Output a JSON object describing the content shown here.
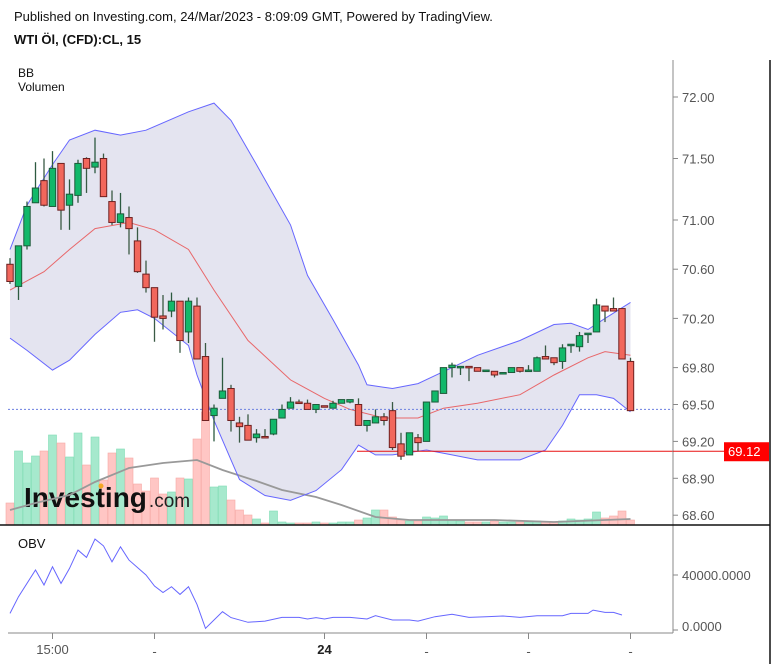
{
  "header": {
    "published": "Published on Investing.com, 24/Mar/2023 - 8:09:09 GMT, Powered by TradingView.",
    "symbol": "WTI Öl, (CFD):CL, 15"
  },
  "indicators": {
    "bb_label": "BB",
    "volume_label": "Volumen",
    "obv_label": "OBV"
  },
  "logo": {
    "text": "Investing",
    "suffix": ".com"
  },
  "colors": {
    "up": "#12b86a",
    "down": "#f2675c",
    "up_border": "#1d5a3a",
    "down_border": "#6e2020",
    "vol_up": "#a6e9cd",
    "vol_down": "#ffc6c4",
    "bb_fill": "#e4e4f0",
    "bb_band": "#6666ff",
    "bb_mid": "#e8676a",
    "vol_ma": "#999999",
    "obv": "#6666ff",
    "price_line": "#e81010",
    "last_line": "#6b7fe0"
  },
  "chart_data": [
    {
      "type": "candlestick",
      "title": "",
      "yaxis": {
        "ticks": [
          72.0,
          71.5,
          71.0,
          70.6,
          70.2,
          69.8,
          69.5,
          69.2,
          68.9,
          68.6
        ],
        "tick_labels": [
          "72.00",
          "71.50",
          "71.00",
          "70.60",
          "70.20",
          "69.80",
          "69.50",
          "69.20",
          "68.90",
          "68.60"
        ],
        "ylim": [
          68.55,
          72.3
        ]
      },
      "xaxis": {
        "ticks": [
          6,
          18,
          38,
          50,
          62,
          74
        ],
        "tick_labels": [
          "15:00",
          "-",
          "24",
          "-",
          "-",
          "-"
        ],
        "bold": [
          false,
          false,
          true,
          false,
          false,
          false
        ]
      },
      "price_marker": {
        "value": 69.12,
        "label": "69.12"
      },
      "last_price_line": 69.46,
      "ohlc": [
        [
          70.64,
          70.69,
          70.48,
          70.5
        ],
        [
          70.46,
          70.79,
          70.35,
          70.79
        ],
        [
          70.79,
          71.15,
          70.76,
          71.11
        ],
        [
          71.14,
          71.47,
          71.14,
          71.26
        ],
        [
          71.32,
          71.5,
          71.11,
          71.12
        ],
        [
          71.11,
          71.56,
          71.11,
          71.42
        ],
        [
          71.46,
          71.46,
          70.92,
          71.08
        ],
        [
          71.12,
          71.33,
          70.92,
          71.21
        ],
        [
          71.2,
          71.49,
          71.14,
          71.46
        ],
        [
          71.5,
          71.51,
          71.22,
          71.42
        ],
        [
          71.43,
          71.67,
          71.38,
          71.47
        ],
        [
          71.5,
          71.54,
          71.19,
          71.19
        ],
        [
          71.15,
          71.24,
          70.96,
          70.98
        ],
        [
          70.98,
          71.22,
          70.94,
          71.05
        ],
        [
          71.02,
          71.11,
          70.72,
          70.93
        ],
        [
          70.83,
          70.94,
          70.57,
          70.58
        ],
        [
          70.56,
          70.67,
          70.41,
          70.45
        ],
        [
          70.45,
          70.45,
          70.01,
          70.21
        ],
        [
          70.22,
          70.39,
          70.11,
          70.2
        ],
        [
          70.26,
          70.41,
          70.21,
          70.34
        ],
        [
          70.34,
          70.34,
          69.92,
          70.02
        ],
        [
          70.09,
          70.37,
          70.0,
          70.34
        ],
        [
          70.3,
          70.37,
          69.87,
          69.87
        ],
        [
          69.89,
          70.0,
          69.37,
          69.37
        ],
        [
          69.41,
          69.5,
          69.2,
          69.47
        ],
        [
          69.55,
          69.88,
          69.55,
          69.61
        ],
        [
          69.63,
          69.66,
          69.28,
          69.37
        ],
        [
          69.35,
          69.4,
          69.19,
          69.32
        ],
        [
          69.33,
          69.42,
          69.21,
          69.21
        ],
        [
          69.23,
          69.3,
          69.19,
          69.26
        ],
        [
          69.24,
          69.3,
          69.23,
          69.23
        ],
        [
          69.26,
          69.38,
          69.25,
          69.38
        ],
        [
          69.39,
          69.5,
          69.39,
          69.46
        ],
        [
          69.47,
          69.56,
          69.47,
          69.52
        ],
        [
          69.52,
          69.54,
          69.51,
          69.51
        ],
        [
          69.51,
          69.54,
          69.46,
          69.46
        ],
        [
          69.46,
          69.5,
          69.43,
          69.5
        ],
        [
          69.49,
          69.49,
          69.48,
          69.48
        ],
        [
          69.47,
          69.53,
          69.47,
          69.51
        ],
        [
          69.51,
          69.54,
          69.51,
          69.54
        ],
        [
          69.52,
          69.54,
          69.51,
          69.54
        ],
        [
          69.5,
          69.55,
          69.33,
          69.33
        ],
        [
          69.33,
          69.37,
          69.28,
          69.37
        ],
        [
          69.35,
          69.46,
          69.35,
          69.4
        ],
        [
          69.4,
          69.43,
          69.33,
          69.37
        ],
        [
          69.45,
          69.52,
          69.13,
          69.15
        ],
        [
          69.18,
          69.27,
          69.05,
          69.08
        ],
        [
          69.09,
          69.27,
          69.09,
          69.27
        ],
        [
          69.23,
          69.26,
          69.12,
          69.19
        ],
        [
          69.2,
          69.52,
          69.2,
          69.52
        ],
        [
          69.52,
          69.61,
          69.52,
          69.61
        ],
        [
          69.59,
          69.8,
          69.59,
          69.8
        ],
        [
          69.8,
          69.84,
          69.72,
          69.82
        ],
        [
          69.8,
          69.81,
          69.74,
          69.81
        ],
        [
          69.81,
          69.81,
          69.69,
          69.8
        ],
        [
          69.8,
          69.8,
          69.77,
          69.77
        ],
        [
          69.77,
          69.78,
          69.77,
          69.78
        ],
        [
          69.77,
          69.77,
          69.72,
          69.74
        ],
        [
          69.75,
          69.76,
          69.75,
          69.76
        ],
        [
          69.76,
          69.8,
          69.76,
          69.8
        ],
        [
          69.8,
          69.8,
          69.76,
          69.77
        ],
        [
          69.77,
          69.82,
          69.77,
          69.78
        ],
        [
          69.77,
          69.89,
          69.77,
          69.88
        ],
        [
          69.89,
          69.98,
          69.87,
          69.87
        ],
        [
          69.88,
          69.88,
          69.82,
          69.84
        ],
        [
          69.85,
          69.99,
          69.79,
          69.96
        ],
        [
          69.98,
          69.99,
          69.92,
          69.99
        ],
        [
          69.97,
          70.09,
          69.93,
          70.06
        ],
        [
          70.07,
          70.08,
          70.0,
          70.08
        ],
        [
          70.09,
          70.36,
          70.09,
          70.31
        ],
        [
          70.3,
          70.3,
          70.17,
          70.26
        ],
        [
          70.28,
          70.37,
          70.26,
          70.26
        ],
        [
          70.28,
          70.28,
          69.87,
          69.87
        ],
        [
          69.85,
          69.88,
          69.45,
          69.45
        ]
      ],
      "bollinger": {
        "upper": [
          [
            1,
            70.76
          ],
          [
            3,
            71.12
          ],
          [
            6,
            71.45
          ],
          [
            8,
            71.65
          ],
          [
            11,
            71.73
          ],
          [
            14,
            71.69
          ],
          [
            17,
            71.73
          ],
          [
            22,
            71.88
          ],
          [
            25,
            71.95
          ],
          [
            27,
            71.81
          ],
          [
            30,
            71.45
          ],
          [
            34,
            70.96
          ],
          [
            36,
            70.55
          ],
          [
            39,
            70.19
          ],
          [
            42,
            69.82
          ],
          [
            43,
            69.66
          ],
          [
            46,
            69.63
          ],
          [
            49,
            69.67
          ],
          [
            53,
            69.8
          ],
          [
            56,
            69.9
          ],
          [
            61,
            70.02
          ],
          [
            65,
            70.15
          ],
          [
            67,
            70.16
          ],
          [
            69,
            70.11
          ],
          [
            71,
            70.2
          ],
          [
            74,
            70.33
          ]
        ],
        "middle": [
          [
            1,
            70.43
          ],
          [
            5,
            70.58
          ],
          [
            8,
            70.76
          ],
          [
            11,
            70.93
          ],
          [
            15,
            70.98
          ],
          [
            18,
            70.92
          ],
          [
            22,
            70.76
          ],
          [
            25,
            70.43
          ],
          [
            29,
            70.02
          ],
          [
            34,
            69.7
          ],
          [
            38,
            69.55
          ],
          [
            41,
            69.46
          ],
          [
            45,
            69.39
          ],
          [
            49,
            69.39
          ],
          [
            52,
            69.47
          ],
          [
            56,
            69.51
          ],
          [
            61,
            69.58
          ],
          [
            65,
            69.74
          ],
          [
            69,
            69.88
          ],
          [
            71,
            69.93
          ],
          [
            74,
            69.9
          ]
        ],
        "lower": [
          [
            1,
            70.04
          ],
          [
            3,
            69.94
          ],
          [
            6,
            69.78
          ],
          [
            8,
            69.86
          ],
          [
            11,
            70.07
          ],
          [
            14,
            70.25
          ],
          [
            16,
            70.27
          ],
          [
            18,
            70.2
          ],
          [
            22,
            69.98
          ],
          [
            23,
            69.74
          ],
          [
            25,
            69.37
          ],
          [
            27,
            69.05
          ],
          [
            28,
            68.89
          ],
          [
            31,
            68.76
          ],
          [
            34,
            68.72
          ],
          [
            37,
            68.8
          ],
          [
            40,
            68.97
          ],
          [
            42,
            69.17
          ],
          [
            44,
            69.09
          ],
          [
            46,
            69.09
          ],
          [
            50,
            69.13
          ],
          [
            53,
            69.09
          ],
          [
            56,
            69.05
          ],
          [
            61,
            69.05
          ],
          [
            64,
            69.13
          ],
          [
            66,
            69.33
          ],
          [
            68,
            69.58
          ],
          [
            70,
            69.58
          ],
          [
            72,
            69.55
          ],
          [
            74,
            69.44
          ]
        ]
      },
      "volume": [
        22,
        74,
        62,
        69,
        74,
        90,
        82,
        68,
        92,
        60,
        88,
        45,
        72,
        76,
        67,
        41,
        34,
        47,
        31,
        33,
        47,
        46,
        86,
        113,
        38,
        39,
        25,
        15,
        10,
        6,
        2,
        14,
        3,
        2,
        2,
        2,
        3,
        2,
        2,
        3,
        3,
        5,
        7,
        15,
        15,
        8,
        5,
        4,
        4,
        8,
        7,
        9,
        5,
        4,
        3,
        3,
        3,
        4,
        3,
        3,
        3,
        3,
        4,
        3,
        3,
        4,
        6,
        5,
        6,
        13,
        7,
        9,
        14,
        5
      ],
      "volume_ma": [
        [
          1,
          15
        ],
        [
          4,
          22
        ],
        [
          8,
          30
        ],
        [
          11,
          43
        ],
        [
          15,
          57
        ],
        [
          19,
          62
        ],
        [
          23,
          65
        ],
        [
          26,
          55
        ],
        [
          30,
          44
        ],
        [
          33,
          35
        ],
        [
          37,
          28
        ],
        [
          40,
          20
        ],
        [
          44,
          8
        ],
        [
          48,
          5
        ],
        [
          58,
          5
        ],
        [
          65,
          3
        ],
        [
          74,
          6
        ]
      ]
    },
    {
      "type": "line",
      "title": "",
      "series_label": "OBV",
      "yaxis": {
        "ticks": [
          40000,
          0
        ],
        "tick_labels": [
          "40000.0000",
          "0.0000"
        ]
      },
      "values": [
        [
          1,
          12100
        ],
        [
          2,
          24200
        ],
        [
          4,
          43600
        ],
        [
          5,
          32700
        ],
        [
          6,
          46000
        ],
        [
          7,
          33900
        ],
        [
          8,
          44800
        ],
        [
          9,
          58100
        ],
        [
          10,
          52800
        ],
        [
          11,
          66100
        ],
        [
          12,
          61200
        ],
        [
          13,
          49600
        ],
        [
          14,
          60500
        ],
        [
          15,
          50800
        ],
        [
          17,
          40000
        ],
        [
          18,
          32000
        ],
        [
          19,
          27300
        ],
        [
          20,
          31500
        ],
        [
          21,
          25900
        ],
        [
          22,
          31500
        ],
        [
          23,
          18600
        ],
        [
          24,
          1200
        ],
        [
          26,
          13300
        ],
        [
          27,
          9000
        ],
        [
          29,
          5600
        ],
        [
          31,
          6500
        ],
        [
          33,
          9200
        ],
        [
          35,
          9200
        ],
        [
          36,
          8000
        ],
        [
          37,
          9000
        ],
        [
          38,
          8000
        ],
        [
          39,
          9200
        ],
        [
          41,
          9200
        ],
        [
          43,
          8000
        ],
        [
          44,
          10400
        ],
        [
          46,
          7300
        ],
        [
          48,
          7300
        ],
        [
          49,
          6500
        ],
        [
          51,
          9700
        ],
        [
          53,
          11400
        ],
        [
          55,
          9200
        ],
        [
          57,
          9700
        ],
        [
          59,
          10200
        ],
        [
          61,
          9200
        ],
        [
          63,
          10400
        ],
        [
          66,
          10400
        ],
        [
          67,
          12100
        ],
        [
          69,
          12100
        ],
        [
          69.6,
          14500
        ],
        [
          71,
          12800
        ],
        [
          72,
          12800
        ],
        [
          73,
          10900
        ]
      ]
    }
  ]
}
